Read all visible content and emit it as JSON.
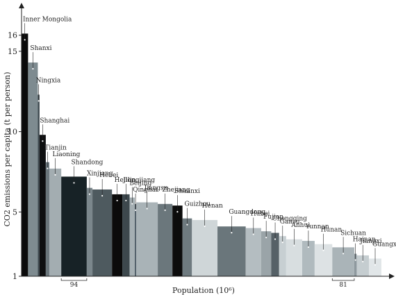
{
  "chart_data": {
    "type": "bar",
    "title": "",
    "ylabel": "CO2 emissions per capita (t per person)",
    "xlabel": "Population (10⁶)",
    "ylim": [
      1,
      17.5
    ],
    "yticks": [
      1,
      5,
      10,
      15,
      16
    ],
    "bar_width_annotations": [
      {
        "label": "94",
        "from_region": "Shandong"
      },
      {
        "label": "81",
        "from_region": "Sichuan"
      }
    ],
    "series": [
      {
        "values": [
          {
            "region": "Inner Mongolia",
            "population": 24,
            "co2": 16.1,
            "color": "#0b0b0b"
          },
          {
            "region": "Shanxi",
            "population": 36,
            "co2": 14.3,
            "color": "#7e8b90"
          },
          {
            "region": "Ningxia",
            "population": 6.3,
            "co2": 12.3,
            "color": "#3f4a50"
          },
          {
            "region": "Shanghai",
            "population": 23,
            "co2": 9.8,
            "color": "#0e0f10"
          },
          {
            "region": "Tianjin",
            "population": 13,
            "co2": 8.1,
            "color": "#6a767b"
          },
          {
            "region": "Liaoning",
            "population": 44,
            "co2": 7.7,
            "color": "#a3adb1"
          },
          {
            "region": "Shandong",
            "population": 94,
            "co2": 7.2,
            "color": "#172226"
          },
          {
            "region": "Xinjiang",
            "population": 21,
            "co2": 6.5,
            "color": "#7b878c"
          },
          {
            "region": "Hebei",
            "population": 72,
            "co2": 6.4,
            "color": "#4e5a5f"
          },
          {
            "region": "Heilongjiang",
            "population": 38,
            "co2": 6.1,
            "color": "#0b0b0b"
          },
          {
            "region": "Jilin",
            "population": 27,
            "co2": 6.1,
            "color": "#3d484d"
          },
          {
            "region": "Beijing",
            "population": 19,
            "co2": 5.9,
            "color": "#a5afb3"
          },
          {
            "region": "Qinghai",
            "population": 5.6,
            "co2": 5.5,
            "color": "#52606a"
          },
          {
            "region": "Jiangsu",
            "population": 79,
            "co2": 5.6,
            "color": "#a9b3b7"
          },
          {
            "region": "Zhejiang",
            "population": 54,
            "co2": 5.5,
            "color": "#6b777c"
          },
          {
            "region": "Shaanxi",
            "population": 37,
            "co2": 5.4,
            "color": "#0c0c0c"
          },
          {
            "region": "Guizhou",
            "population": 35,
            "co2": 4.6,
            "color": "#6e7a7f"
          },
          {
            "region": "Henan",
            "population": 94,
            "co2": 4.5,
            "color": "#cfd6d8"
          },
          {
            "region": "Guangdong",
            "population": 104,
            "co2": 4.1,
            "color": "#6a767b"
          },
          {
            "region": "Hubei",
            "population": 57,
            "co2": 4.0,
            "color": "#b4bdc1"
          },
          {
            "region": "Fujian",
            "population": 37,
            "co2": 3.8,
            "color": "#9aa4a8"
          },
          {
            "region": "Chongqing",
            "population": 29,
            "co2": 3.7,
            "color": "#566167"
          },
          {
            "region": "Gansu",
            "population": 26,
            "co2": 3.5,
            "color": "#c7cfd2"
          },
          {
            "region": "Anhui",
            "population": 59,
            "co2": 3.3,
            "color": "#d8dee0"
          },
          {
            "region": "Yunnan",
            "population": 46,
            "co2": 3.2,
            "color": "#b0babe"
          },
          {
            "region": "Hunan",
            "population": 65,
            "co2": 3.0,
            "color": "#dde2e4"
          },
          {
            "region": "Sichuan",
            "population": 81,
            "co2": 2.8,
            "color": "#aab4b8"
          },
          {
            "region": "Hainan",
            "population": 9,
            "co2": 2.4,
            "color": "#8e999e"
          },
          {
            "region": "Jiangxi",
            "population": 45,
            "co2": 2.3,
            "color": "#c5cdd0"
          },
          {
            "region": "Guangxi",
            "population": 46,
            "co2": 2.1,
            "color": "#e1e6e8"
          }
        ]
      }
    ]
  }
}
